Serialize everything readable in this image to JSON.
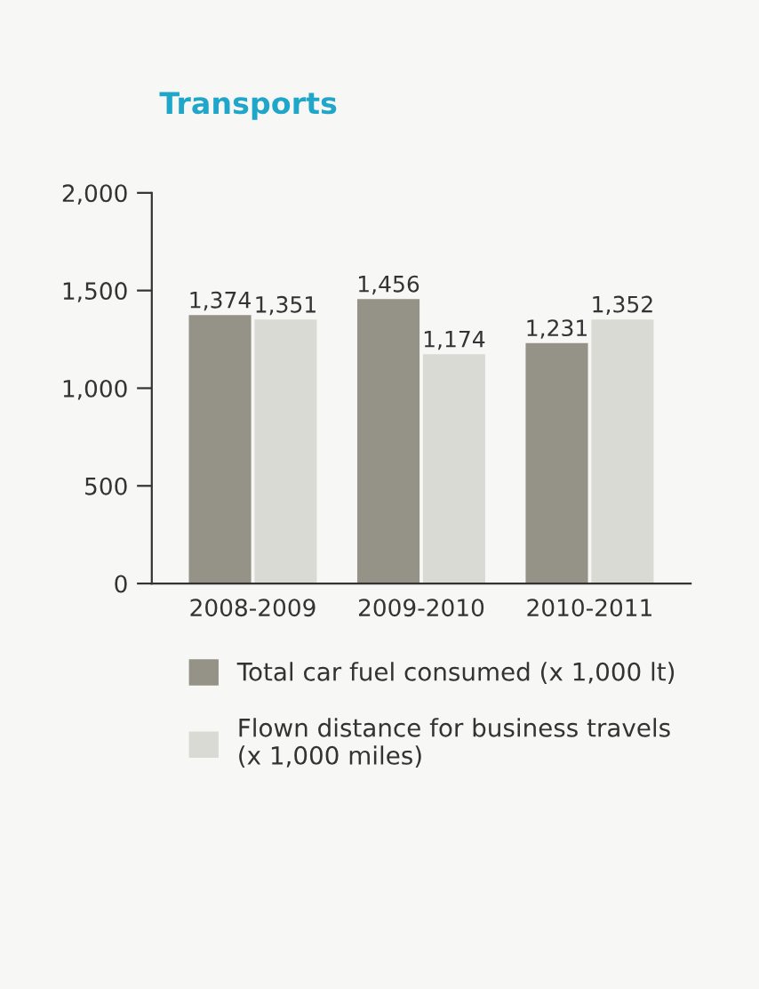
{
  "chart_data": {
    "type": "bar",
    "title": "Transports",
    "categories": [
      "2008-2009",
      "2009-2010",
      "2010-2011"
    ],
    "series": [
      {
        "name": "Total car fuel consumed (x 1,000 lt)",
        "color": "#959287",
        "values": [
          1374,
          1456,
          1231
        ],
        "value_labels": [
          "1,374",
          "1,456",
          "1,231"
        ]
      },
      {
        "name": "Flown distance for business travels\n(x 1,000 miles)",
        "color": "#dadad4",
        "values": [
          1351,
          1174,
          1352
        ],
        "value_labels": [
          "1,351",
          "1,174",
          "1,352"
        ]
      }
    ],
    "ylim": [
      0,
      2000
    ],
    "yticks": [
      {
        "value": 0,
        "label": "0"
      },
      {
        "value": 500,
        "label": "500"
      },
      {
        "value": 1000,
        "label": "1,000"
      },
      {
        "value": 1500,
        "label": "1,500"
      },
      {
        "value": 2000,
        "label": "2,000"
      }
    ],
    "grid": false,
    "legend": "bottom"
  }
}
